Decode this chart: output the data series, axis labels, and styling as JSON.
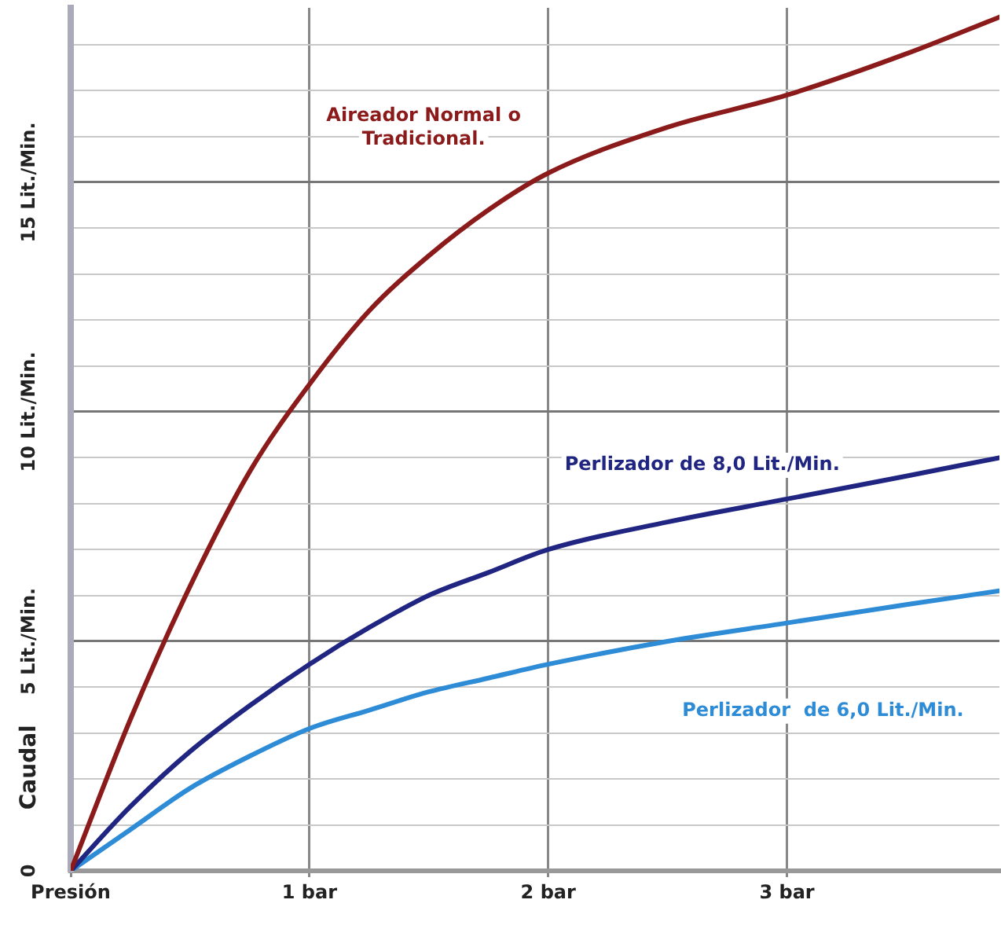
{
  "chart_data": {
    "type": "line",
    "ylabel": "Caudal",
    "x": [
      0,
      0.25,
      0.5,
      0.75,
      1,
      1.25,
      1.5,
      1.75,
      2,
      2.5,
      3,
      3.5,
      3.89
    ],
    "series": [
      {
        "name": "Aireador Normal o Tradicional.",
        "color": "#8b1a1a",
        "values": [
          0,
          3.3,
          6.2,
          8.7,
          10.6,
          12.2,
          13.4,
          14.4,
          15.2,
          16.2,
          16.9,
          17.8,
          18.6
        ]
      },
      {
        "name": "Perlizador de 8,0 Lit./Min.",
        "color": "#1f2580",
        "values": [
          0,
          1.4,
          2.6,
          3.6,
          4.5,
          5.3,
          6.0,
          6.5,
          7.0,
          7.6,
          8.1,
          8.6,
          9.0
        ]
      },
      {
        "name": "Perlizador  de 6,0 Lit./Min.",
        "color": "#2e8bd6",
        "values": [
          0,
          0.9,
          1.8,
          2.5,
          3.1,
          3.5,
          3.9,
          4.2,
          4.5,
          5.0,
          5.4,
          5.8,
          6.1
        ]
      }
    ],
    "xlim": [
      0,
      3.89
    ],
    "xticks": [
      {
        "value": 0,
        "label": "Presión"
      },
      {
        "value": 1,
        "label": "1 bar"
      },
      {
        "value": 2,
        "label": "2 bar"
      },
      {
        "value": 3,
        "label": "3 bar"
      }
    ],
    "ylim": [
      0,
      18.8
    ],
    "yticks": [
      0,
      {
        "value": 1,
        "label": null
      },
      {
        "value": 2,
        "label": null
      },
      {
        "value": 3,
        "label": null
      },
      {
        "value": 4,
        "label": null
      },
      {
        "value": 5,
        "label": "5 Lit./Min."
      },
      {
        "value": 6,
        "label": null
      },
      {
        "value": 7,
        "label": null
      },
      {
        "value": 8,
        "label": null
      },
      {
        "value": 9,
        "label": null
      },
      {
        "value": 10,
        "label": "10 Lit./Min."
      },
      {
        "value": 11,
        "label": null
      },
      {
        "value": 12,
        "label": null
      },
      {
        "value": 13,
        "label": null
      },
      {
        "value": 14,
        "label": null
      },
      {
        "value": 15,
        "label": "15 Lit./Min."
      },
      {
        "value": 16,
        "label": null
      },
      {
        "value": 17,
        "label": null
      },
      {
        "value": 18,
        "label": null
      }
    ],
    "grid": true,
    "legend": false,
    "marker": "none",
    "line_style": "solid"
  }
}
